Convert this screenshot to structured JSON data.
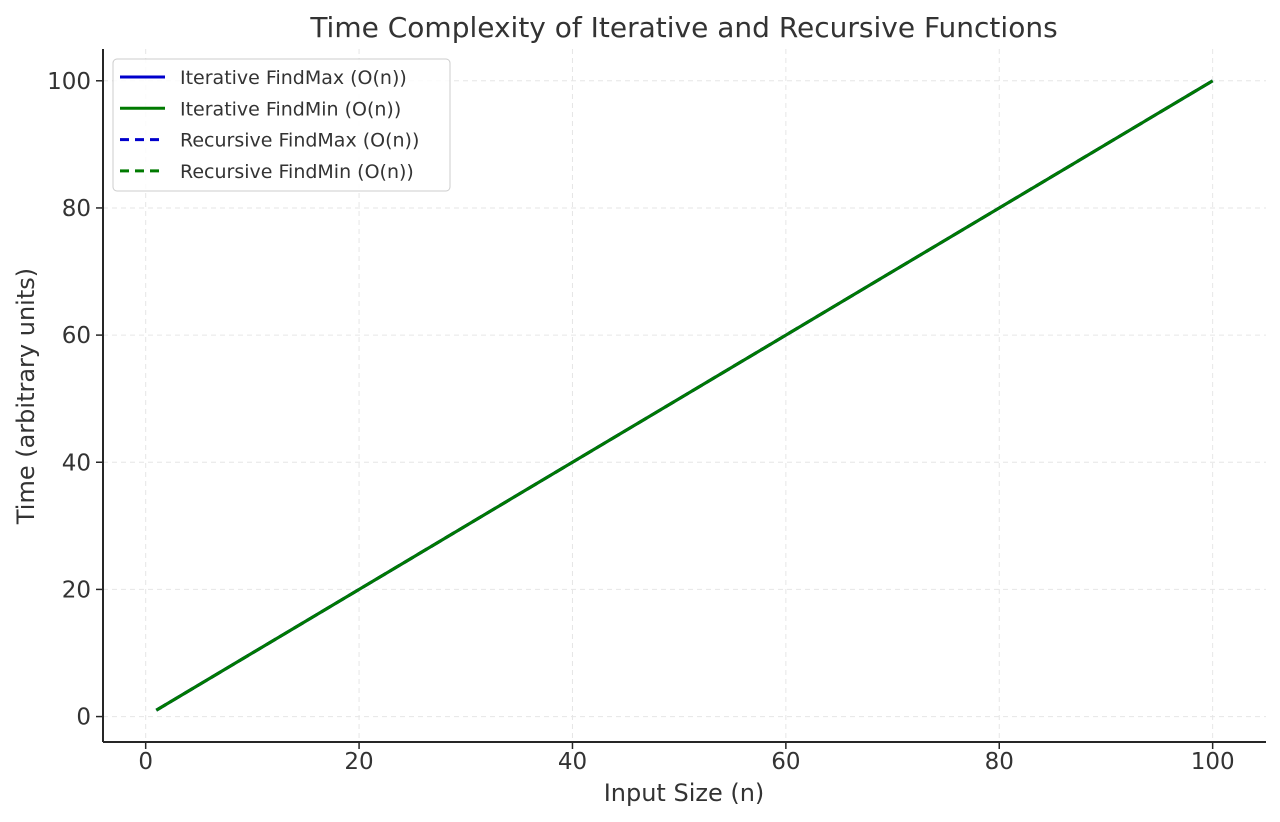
{
  "chart_data": {
    "type": "line",
    "title": "Time Complexity of Iterative and Recursive Functions",
    "xlabel": "Input Size (n)",
    "ylabel": "Time (arbitrary units)",
    "xlim": [
      -4,
      105
    ],
    "ylim": [
      -4,
      105
    ],
    "x_ticks": [
      0,
      20,
      40,
      60,
      80,
      100
    ],
    "y_ticks": [
      0,
      20,
      40,
      60,
      80,
      100
    ],
    "grid": true,
    "legend_position": "top-left",
    "series": [
      {
        "name": "Iterative FindMax (O(n))",
        "color": "#0000cc",
        "line_style": "solid",
        "x": [
          1,
          100
        ],
        "y": [
          1,
          100
        ]
      },
      {
        "name": "Iterative FindMin (O(n))",
        "color": "#007a00",
        "line_style": "solid",
        "x": [
          1,
          100
        ],
        "y": [
          1,
          100
        ]
      },
      {
        "name": "Recursive FindMax (O(n))",
        "color": "#0000cc",
        "line_style": "dashed",
        "x": [
          1,
          100
        ],
        "y": [
          1,
          100
        ]
      },
      {
        "name": "Recursive FindMin (O(n))",
        "color": "#007a00",
        "line_style": "dashed",
        "x": [
          1,
          100
        ],
        "y": [
          1,
          100
        ]
      }
    ]
  }
}
